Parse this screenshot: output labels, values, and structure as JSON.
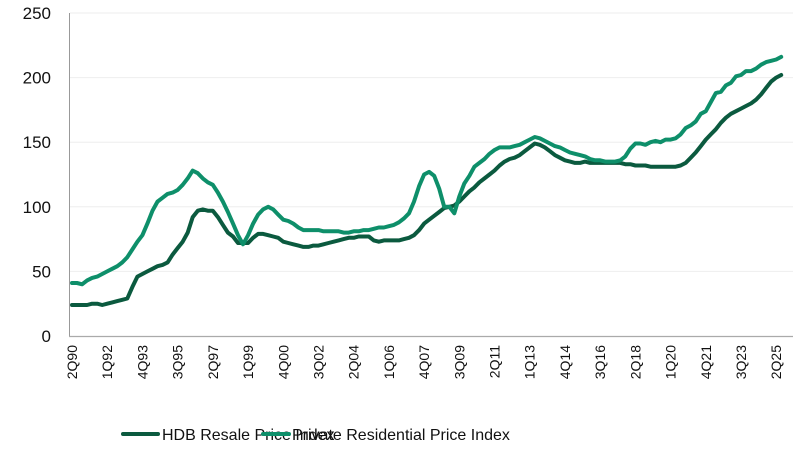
{
  "chart_data": {
    "type": "line",
    "title": "",
    "xlabel": "",
    "ylabel": "",
    "ylim": [
      0,
      250
    ],
    "yticks": [
      0,
      50,
      100,
      150,
      200,
      250
    ],
    "grid": "horizontal",
    "legend_position": "bottom",
    "x_start": "2Q90",
    "x_end": "3Q25",
    "x_tick_labels": [
      "2Q90",
      "1Q92",
      "4Q93",
      "3Q95",
      "2Q97",
      "1Q99",
      "4Q00",
      "3Q02",
      "2Q04",
      "1Q06",
      "4Q07",
      "3Q09",
      "2Q11",
      "1Q13",
      "4Q14",
      "3Q16",
      "2Q18",
      "1Q20",
      "4Q21",
      "3Q23",
      "2Q25"
    ],
    "series": [
      {
        "name": "HDB Resale Price Index",
        "color": "#0b5a3f",
        "values": [
          24,
          24,
          24,
          24,
          25,
          25,
          24,
          25,
          26,
          27,
          28,
          29,
          38,
          46,
          48,
          50,
          52,
          54,
          55,
          57,
          63,
          68,
          73,
          80,
          92,
          97,
          98,
          97,
          97,
          92,
          86,
          80,
          77,
          72,
          72,
          72,
          76,
          79,
          79,
          78,
          77,
          76,
          73,
          72,
          71,
          70,
          69,
          69,
          70,
          70,
          71,
          72,
          73,
          74,
          75,
          76,
          76,
          77,
          77,
          77,
          74,
          73,
          74,
          74,
          74,
          74,
          75,
          76,
          78,
          82,
          87,
          90,
          93,
          96,
          99,
          100,
          101,
          104,
          108,
          112,
          115,
          119,
          122,
          125,
          128,
          132,
          135,
          137,
          138,
          140,
          143,
          146,
          149,
          148,
          146,
          143,
          140,
          138,
          136,
          135,
          134,
          134,
          135,
          134,
          134,
          134,
          134,
          134,
          134,
          134,
          133,
          133,
          132,
          132,
          132,
          131,
          131,
          131,
          131,
          131,
          131,
          132,
          134,
          138,
          142,
          147,
          152,
          156,
          160,
          165,
          169,
          172,
          174,
          176,
          178,
          180,
          183,
          187,
          192,
          197,
          200,
          202
        ]
      },
      {
        "name": "Private Residential Price Index",
        "color": "#0e8f6a",
        "values": [
          41,
          41,
          40,
          43,
          45,
          46,
          48,
          50,
          52,
          54,
          57,
          61,
          67,
          73,
          78,
          87,
          97,
          104,
          107,
          110,
          111,
          113,
          117,
          122,
          128,
          126,
          122,
          119,
          117,
          111,
          104,
          96,
          87,
          78,
          71,
          78,
          87,
          94,
          98,
          100,
          98,
          94,
          90,
          89,
          87,
          84,
          82,
          82,
          82,
          82,
          81,
          81,
          81,
          81,
          80,
          80,
          81,
          81,
          82,
          82,
          83,
          84,
          84,
          85,
          86,
          88,
          91,
          95,
          104,
          116,
          125,
          127,
          124,
          114,
          100,
          100,
          95,
          108,
          118,
          124,
          131,
          134,
          137,
          141,
          144,
          146,
          146,
          146,
          147,
          148,
          150,
          152,
          154,
          153,
          151,
          149,
          147,
          146,
          144,
          142,
          141,
          140,
          139,
          137,
          136,
          136,
          135,
          135,
          135,
          136,
          139,
          145,
          149,
          149,
          148,
          150,
          151,
          150,
          152,
          152,
          153,
          156,
          161,
          163,
          166,
          172,
          174,
          181,
          188,
          189,
          194,
          196,
          201,
          202,
          205,
          205,
          207,
          210,
          212,
          213,
          214,
          216
        ]
      }
    ]
  }
}
